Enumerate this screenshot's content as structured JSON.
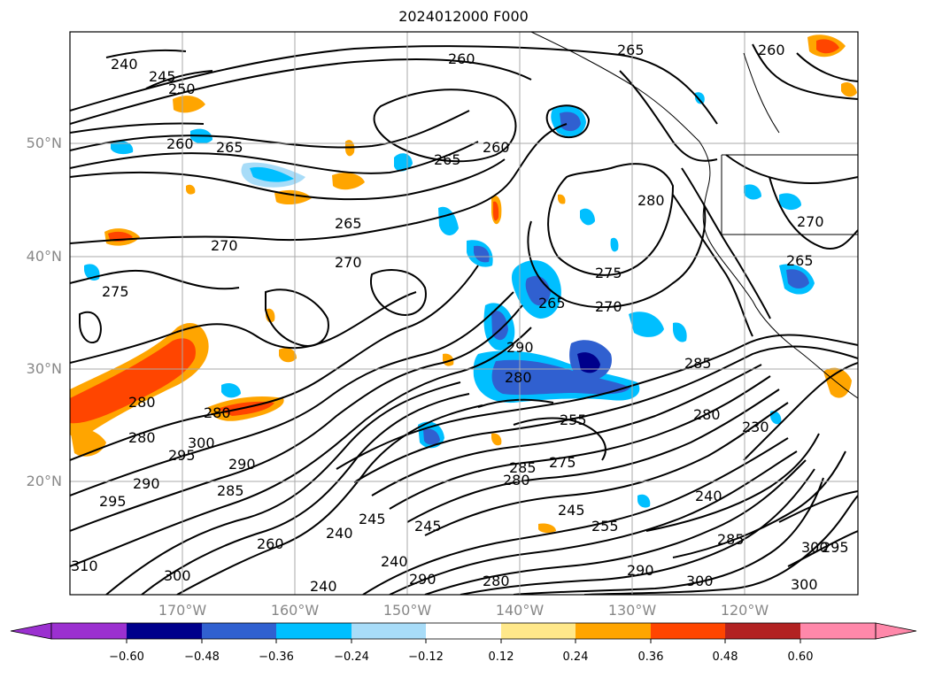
{
  "title": "2024012000 F000",
  "lat_labels": [
    "50°N",
    "40°N",
    "30°N",
    "20°N"
  ],
  "lon_labels": [
    "170°W",
    "160°W",
    "150°W",
    "140°W",
    "130°W",
    "120°W"
  ],
  "colorbar": {
    "ticks": [
      "−0.60",
      "−0.48",
      "−0.36",
      "−0.24",
      "−0.12",
      "0.12",
      "0.24",
      "0.36",
      "0.48",
      "0.60"
    ],
    "colors": [
      "#9b30d0",
      "#00008b",
      "#3060d0",
      "#00bfff",
      "#a8dcf8",
      "#ffffff",
      "#ffe88a",
      "#ffa500",
      "#ff4500",
      "#b22222",
      "#ff88aa"
    ]
  },
  "contour_labels": [
    "240",
    "245",
    "250",
    "255",
    "260",
    "265",
    "270",
    "275",
    "280",
    "285",
    "290",
    "295",
    "300",
    "310",
    "230"
  ]
}
